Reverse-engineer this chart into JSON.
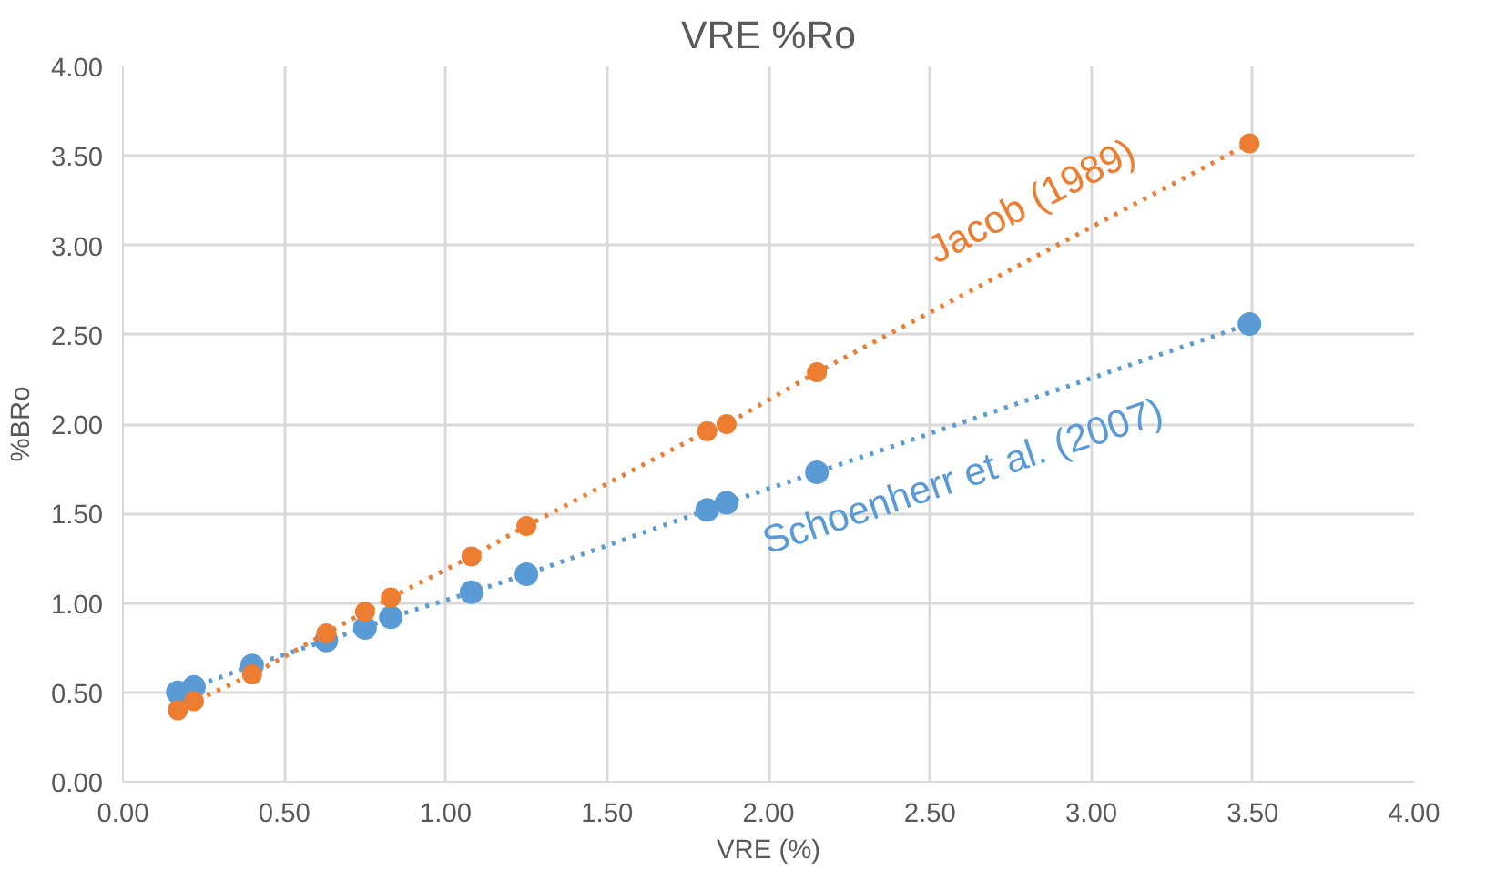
{
  "chart_data": {
    "type": "line",
    "title": "VRE %Ro",
    "xlabel": "VRE (%)",
    "ylabel": "%BRo",
    "x": [
      0.17,
      0.22,
      0.4,
      0.63,
      0.75,
      0.83,
      1.08,
      1.25,
      1.81,
      1.87,
      2.15,
      3.49
    ],
    "series": [
      {
        "name": "Schoenherr et al. (2007)",
        "color": "#5b9bd5",
        "values": [
          0.5,
          0.53,
          0.65,
          0.79,
          0.86,
          0.92,
          1.06,
          1.16,
          1.52,
          1.56,
          1.73,
          2.56
        ]
      },
      {
        "name": "Jacob (1989)",
        "color": "#ed7d31",
        "values": [
          0.4,
          0.45,
          0.6,
          0.83,
          0.95,
          1.03,
          1.26,
          1.43,
          1.96,
          2.0,
          2.29,
          3.57
        ]
      }
    ],
    "xlim": [
      0,
      4
    ],
    "ylim": [
      0,
      4
    ],
    "xticks": [
      {
        "value": 0,
        "label": "0.00"
      },
      {
        "value": 0.5,
        "label": "0.50"
      },
      {
        "value": 1,
        "label": "1.00"
      },
      {
        "value": 1.5,
        "label": "1.50"
      },
      {
        "value": 2,
        "label": "2.00"
      },
      {
        "value": 2.5,
        "label": "2.50"
      },
      {
        "value": 3,
        "label": "3.00"
      },
      {
        "value": 3.5,
        "label": "3.50"
      },
      {
        "value": 4,
        "label": "4.00"
      }
    ],
    "yticks": [
      {
        "value": 0,
        "label": "0.00"
      },
      {
        "value": 0.5,
        "label": "0.50"
      },
      {
        "value": 1,
        "label": "1.00"
      },
      {
        "value": 1.5,
        "label": "1.50"
      },
      {
        "value": 2,
        "label": "2.00"
      },
      {
        "value": 2.5,
        "label": "2.50"
      },
      {
        "value": 3,
        "label": "3.00"
      },
      {
        "value": 3.5,
        "label": "3.50"
      },
      {
        "value": 4,
        "label": "4.00"
      }
    ],
    "grid": true,
    "marker": "circle",
    "line_style": "dotted"
  }
}
